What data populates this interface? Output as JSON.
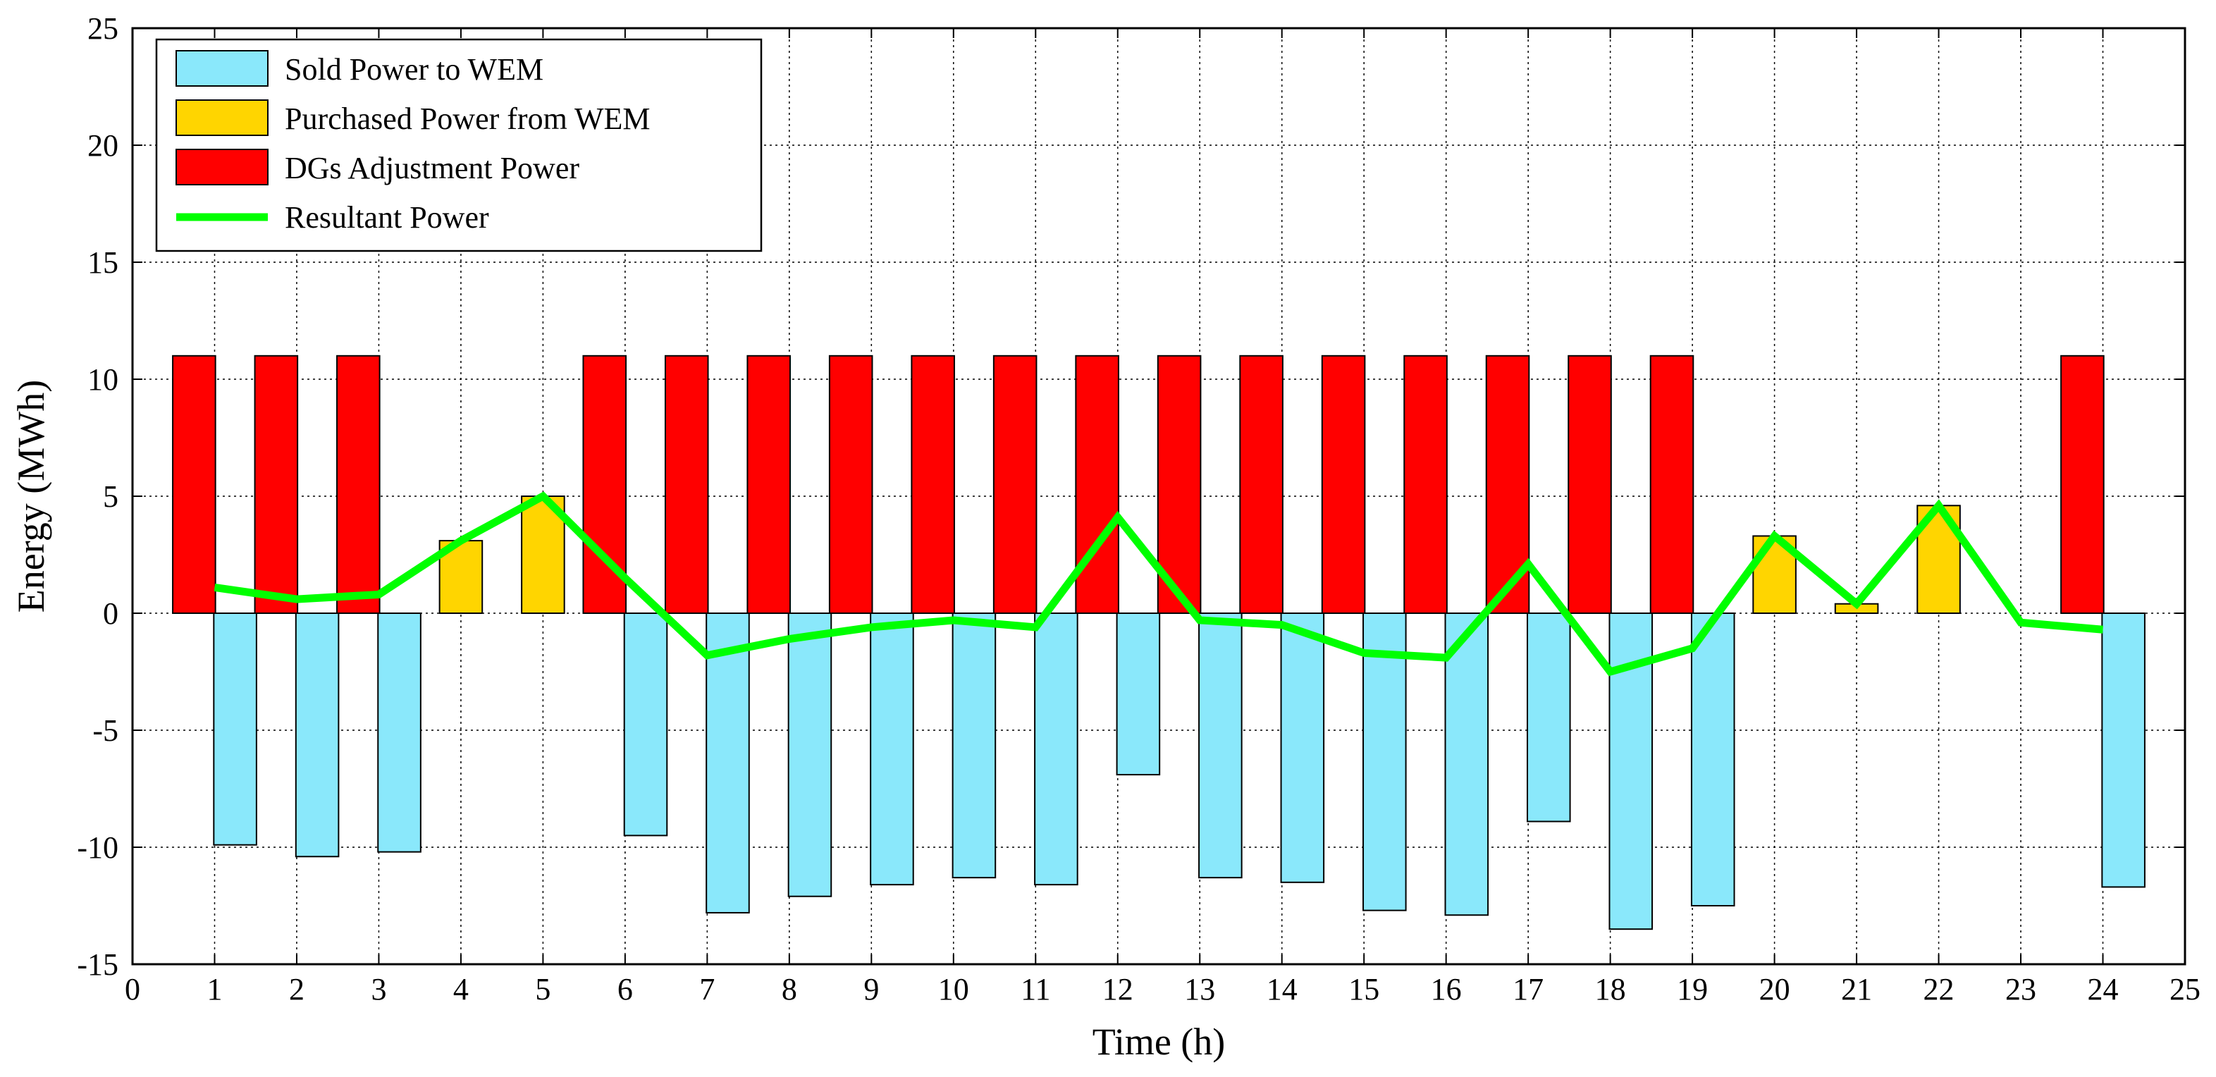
{
  "chart_data": {
    "type": "bar",
    "title": "",
    "xlabel": "Time (h)",
    "ylabel": "Energy (MWh)",
    "xlim": [
      0,
      25
    ],
    "ylim": [
      -15,
      25
    ],
    "xticks": [
      0,
      1,
      2,
      3,
      4,
      5,
      6,
      7,
      8,
      9,
      10,
      11,
      12,
      13,
      14,
      15,
      16,
      17,
      18,
      19,
      20,
      21,
      22,
      23,
      24,
      25
    ],
    "yticks": [
      -15,
      -10,
      -5,
      0,
      5,
      10,
      15,
      20,
      25
    ],
    "grid": true,
    "legend_position": "top-left",
    "x": [
      1,
      2,
      3,
      4,
      5,
      6,
      7,
      8,
      9,
      10,
      11,
      12,
      13,
      14,
      15,
      16,
      17,
      18,
      19,
      20,
      21,
      22,
      23,
      24
    ],
    "series": [
      {
        "name": "Sold Power to WEM",
        "kind": "bar",
        "offset": 0.25,
        "color": "#8ae8fb",
        "values": [
          -9.9,
          -10.4,
          -10.2,
          0,
          0,
          -9.5,
          -12.8,
          -12.1,
          -11.6,
          -11.3,
          -11.6,
          -6.9,
          -11.3,
          -11.5,
          -12.7,
          -12.9,
          -8.9,
          -13.5,
          -12.5,
          0,
          0,
          0,
          0,
          -11.7
        ]
      },
      {
        "name": "Purchased Power from WEM",
        "kind": "bar",
        "offset": 0,
        "color": "#ffd500",
        "values": [
          0,
          0,
          0,
          3.1,
          5.0,
          0,
          0,
          0,
          0,
          0,
          0,
          0,
          0,
          0,
          0,
          0,
          0,
          0,
          0,
          3.3,
          0.4,
          4.6,
          0,
          0
        ]
      },
      {
        "name": "DGs Adjustment Power",
        "kind": "bar",
        "offset": -0.25,
        "color": "#ff0000",
        "values": [
          11,
          11,
          11,
          0,
          0,
          11,
          11,
          11,
          11,
          11,
          11,
          11,
          11,
          11,
          11,
          11,
          11,
          11,
          11,
          0,
          0,
          0,
          0,
          11
        ]
      },
      {
        "name": "Resultant Power",
        "kind": "line",
        "color": "#00ff00",
        "values": [
          1.1,
          0.6,
          0.8,
          3.1,
          5.0,
          1.5,
          -1.8,
          -1.1,
          -0.6,
          -0.3,
          -0.6,
          4.1,
          -0.3,
          -0.5,
          -1.7,
          -1.9,
          2.1,
          -2.5,
          -1.5,
          3.3,
          0.4,
          4.6,
          -0.4,
          -0.7
        ]
      }
    ]
  }
}
